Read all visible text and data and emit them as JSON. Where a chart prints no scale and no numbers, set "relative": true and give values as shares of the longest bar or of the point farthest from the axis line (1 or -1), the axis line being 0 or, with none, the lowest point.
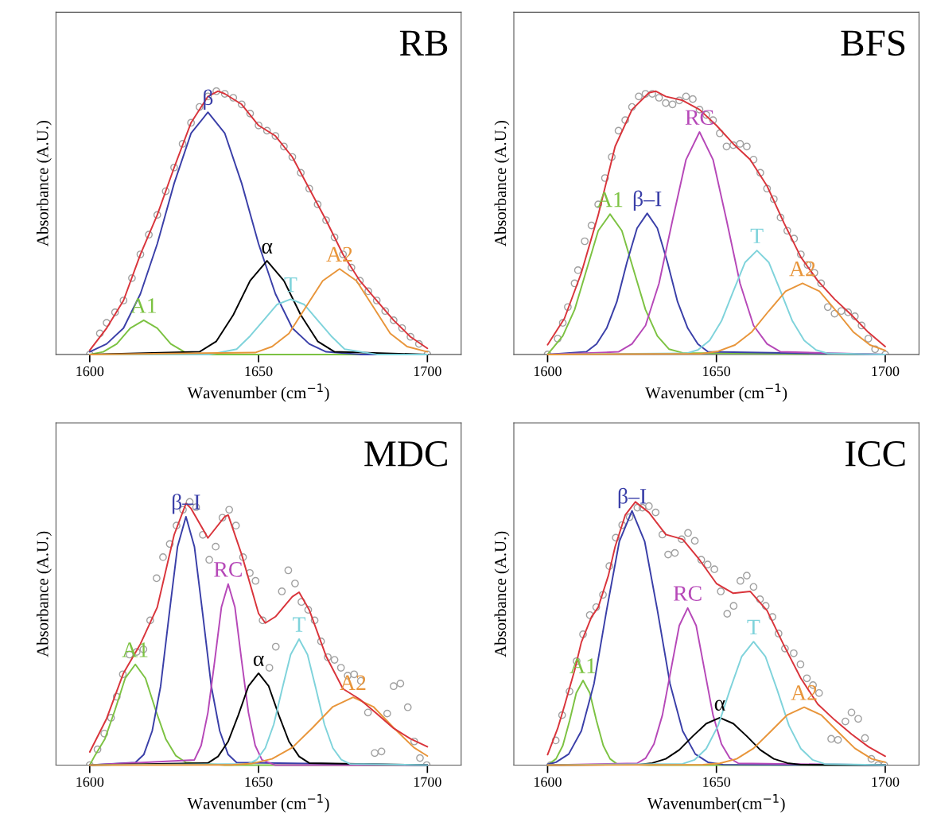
{
  "chart_data": [
    {
      "type": "line",
      "title": "RB",
      "xlabel": "Wavenumber (cm$^{−1}$)",
      "ylabel": "Absorbance (A.U.)",
      "relative": true,
      "tick_labels": "x",
      "xlim": [
        1590,
        1710
      ],
      "xticks": [
        1600,
        1650,
        1700
      ],
      "series": [
        {
          "type": "scatter",
          "marker": "circle",
          "color": "#a0a0a0",
          "x": [
            1600,
            1603,
            1605,
            1607.5,
            1610,
            1612.5,
            1615,
            1617.5,
            1620,
            1622.5,
            1625,
            1627.5,
            1630,
            1632.5,
            1635,
            1637.5,
            1640,
            1642.5,
            1645,
            1647.5,
            1650,
            1652.5,
            1655,
            1657.5,
            1660,
            1662.5,
            1665,
            1667.5,
            1670,
            1672.5,
            1675,
            1677.5,
            1680,
            1682.5,
            1685,
            1687.5,
            1690,
            1692.5,
            1695,
            1697.5,
            1700
          ],
          "values": [
            0,
            0.08,
            0.12,
            0.16,
            0.205,
            0.29,
            0.38,
            0.455,
            0.53,
            0.62,
            0.71,
            0.8,
            0.88,
            0.94,
            0.98,
            1.0,
            0.99,
            0.975,
            0.95,
            0.915,
            0.87,
            0.85,
            0.83,
            0.79,
            0.75,
            0.69,
            0.63,
            0.57,
            0.51,
            0.445,
            0.38,
            0.33,
            0.28,
            0.24,
            0.205,
            0.165,
            0.13,
            0.1,
            0.067,
            0.04,
            0
          ]
        },
        {
          "type": "line",
          "name": "A1",
          "color": "#7cc242",
          "x": [
            1600,
            1604,
            1608,
            1612,
            1616,
            1620,
            1624,
            1628,
            1632,
            1700
          ],
          "values": [
            0,
            0.01,
            0.04,
            0.1,
            0.13,
            0.1,
            0.04,
            0.01,
            0,
            0
          ]
        },
        {
          "type": "line",
          "name": "β",
          "color": "#3a3fa8",
          "x": [
            1600,
            1605,
            1610,
            1615,
            1620,
            1625,
            1630,
            1635,
            1640,
            1645,
            1650,
            1655,
            1660,
            1665,
            1670,
            1680,
            1700
          ],
          "values": [
            0.01,
            0.04,
            0.1,
            0.23,
            0.42,
            0.65,
            0.84,
            0.92,
            0.84,
            0.65,
            0.42,
            0.23,
            0.1,
            0.04,
            0.01,
            0,
            0
          ]
        },
        {
          "type": "line",
          "name": "α",
          "color": "#000000",
          "x": [
            1600,
            1632.5,
            1637.5,
            1642.5,
            1647.5,
            1652.5,
            1657.5,
            1662.5,
            1667.5,
            1672.5,
            1700
          ],
          "values": [
            0,
            0.01,
            0.05,
            0.15,
            0.28,
            0.356,
            0.28,
            0.15,
            0.05,
            0.01,
            0
          ]
        },
        {
          "type": "line",
          "name": "T",
          "color": "#7fd3db",
          "x": [
            1600,
            1635.5,
            1643.5,
            1647.5,
            1651.5,
            1655.5,
            1659.5,
            1663.5,
            1667.5,
            1671.5,
            1675.5,
            1685,
            1700
          ],
          "values": [
            0,
            0,
            0.02,
            0.07,
            0.13,
            0.19,
            0.21,
            0.19,
            0.13,
            0.07,
            0.02,
            0,
            0
          ]
        },
        {
          "type": "line",
          "name": "A2",
          "color": "#e8953a",
          "x": [
            1600,
            1649,
            1654,
            1659,
            1664,
            1669,
            1674,
            1679,
            1684,
            1689,
            1694,
            1700
          ],
          "values": [
            0,
            0.007,
            0.03,
            0.08,
            0.18,
            0.28,
            0.325,
            0.28,
            0.18,
            0.08,
            0.03,
            0.01
          ]
        },
        {
          "type": "line",
          "color": "#d9343b",
          "x": [
            1600,
            1605,
            1610,
            1615,
            1620,
            1625,
            1630,
            1635,
            1638,
            1640,
            1645,
            1650,
            1655,
            1660,
            1665,
            1670,
            1675,
            1680,
            1685,
            1690,
            1695,
            1700
          ],
          "values": [
            0.016,
            0.1,
            0.205,
            0.38,
            0.53,
            0.71,
            0.88,
            0.98,
            1.0,
            0.99,
            0.95,
            0.87,
            0.83,
            0.75,
            0.63,
            0.51,
            0.38,
            0.28,
            0.205,
            0.13,
            0.067,
            0.023
          ]
        }
      ]
    },
    {
      "type": "line",
      "title": "BFS",
      "xlabel": "Wavenumber (cm$^{−1}$)",
      "ylabel": "Absorbance (A.U.)",
      "relative": true,
      "tick_labels": "x",
      "xlim": [
        1590,
        1710
      ],
      "xticks": [
        1600,
        1650,
        1700
      ],
      "series": [
        {
          "type": "scatter",
          "marker": "circle",
          "color": "#a0a0a0",
          "x": [
            1600,
            1603,
            1604.5,
            1606,
            1608,
            1609,
            1611,
            1613,
            1615,
            1617,
            1619,
            1621,
            1623,
            1625,
            1627,
            1629,
            1631,
            1633,
            1635,
            1637,
            1639,
            1641,
            1643,
            1645,
            1647,
            1649,
            1651,
            1653,
            1655,
            1657,
            1659,
            1661,
            1663,
            1665,
            1667,
            1669,
            1671,
            1673,
            1675,
            1677,
            1679,
            1681,
            1683,
            1685,
            1687,
            1689,
            1691,
            1693,
            1695,
            1697,
            1700
          ],
          "values": [
            0,
            0.06,
            0.12,
            0.18,
            0.27,
            0.32,
            0.43,
            0.49,
            0.57,
            0.67,
            0.75,
            0.85,
            0.89,
            0.94,
            0.98,
            0.99,
            0.99,
            0.975,
            0.955,
            0.95,
            0.965,
            0.98,
            0.97,
            0.93,
            0.91,
            0.89,
            0.84,
            0.79,
            0.795,
            0.8,
            0.79,
            0.74,
            0.69,
            0.63,
            0.59,
            0.52,
            0.47,
            0.44,
            0.38,
            0.34,
            0.31,
            0.27,
            0.18,
            0.155,
            0.165,
            0.16,
            0.145,
            0.11,
            0.06,
            0.02,
            0
          ]
        },
        {
          "type": "line",
          "name": "A1",
          "color": "#7cc242",
          "x": [
            1600,
            1604.5,
            1608,
            1611.5,
            1615,
            1618.5,
            1622,
            1625.5,
            1629,
            1632.5,
            1636,
            1640,
            1700
          ],
          "values": [
            0,
            0.07,
            0.17,
            0.32,
            0.47,
            0.533,
            0.47,
            0.32,
            0.17,
            0.07,
            0.02,
            0.006,
            0
          ]
        },
        {
          "type": "line",
          "name": "β–I",
          "color": "#3a3fa8",
          "x": [
            1600,
            1611.5,
            1614.5,
            1617.5,
            1620.5,
            1623.5,
            1626.5,
            1629.5,
            1632.5,
            1635.5,
            1638.5,
            1641.5,
            1644.5,
            1647.5,
            1700
          ],
          "values": [
            0,
            0.01,
            0.04,
            0.1,
            0.2,
            0.35,
            0.48,
            0.536,
            0.48,
            0.35,
            0.2,
            0.1,
            0.04,
            0.01,
            0
          ]
        },
        {
          "type": "line",
          "name": "RC",
          "color": "#b648b8",
          "x": [
            1600,
            1621,
            1625,
            1629,
            1633,
            1637,
            1641,
            1645,
            1649,
            1653,
            1657,
            1661,
            1665,
            1669,
            1700
          ],
          "values": [
            0,
            0.01,
            0.04,
            0.11,
            0.27,
            0.51,
            0.74,
            0.845,
            0.74,
            0.51,
            0.27,
            0.11,
            0.04,
            0.01,
            0
          ]
        },
        {
          "type": "line",
          "name": "T",
          "color": "#7fd3db",
          "x": [
            1600,
            1641,
            1644.5,
            1648,
            1651.5,
            1655,
            1658.5,
            1662,
            1665.5,
            1669,
            1672.5,
            1676,
            1679.5,
            1683,
            1700
          ],
          "values": [
            0,
            0.004,
            0.017,
            0.053,
            0.127,
            0.24,
            0.35,
            0.395,
            0.35,
            0.24,
            0.127,
            0.053,
            0.017,
            0.004,
            0
          ]
        },
        {
          "type": "line",
          "name": "A2",
          "color": "#e8953a",
          "x": [
            1600,
            1645.5,
            1650.5,
            1655.5,
            1660.5,
            1665.5,
            1670.5,
            1675.5,
            1680.5,
            1685.5,
            1690.5,
            1695.5,
            1700
          ],
          "values": [
            0,
            0.003,
            0.012,
            0.036,
            0.086,
            0.165,
            0.24,
            0.27,
            0.24,
            0.165,
            0.086,
            0.036,
            0.015
          ]
        },
        {
          "type": "line",
          "color": "#d9343b",
          "x": [
            1600,
            1605,
            1610,
            1615,
            1620,
            1625,
            1630,
            1632,
            1635,
            1640,
            1645,
            1650,
            1655,
            1660,
            1665,
            1670,
            1675,
            1680,
            1685,
            1690,
            1695,
            1700
          ],
          "values": [
            0.037,
            0.137,
            0.31,
            0.53,
            0.79,
            0.93,
            0.994,
            1.0,
            0.98,
            0.965,
            0.93,
            0.87,
            0.8,
            0.74,
            0.64,
            0.5,
            0.37,
            0.28,
            0.21,
            0.15,
            0.084,
            0.03
          ]
        }
      ]
    },
    {
      "type": "line",
      "title": "MDC",
      "xlabel": "Wavenumber (cm$^{−1}$)",
      "ylabel": "Absorbance (A.U.)",
      "relative": true,
      "tick_labels": "x",
      "xlim": [
        1590,
        1710
      ],
      "xticks": [
        1600,
        1650,
        1700
      ],
      "series": [
        {
          "type": "scatter",
          "marker": "circle",
          "color": "#a0a0a0",
          "x": [
            1600,
            1602.3,
            1604.3,
            1606.3,
            1608,
            1609.8,
            1611.8,
            1613.9,
            1615.9,
            1617.9,
            1619.8,
            1621.7,
            1623.7,
            1625.7,
            1627.6,
            1629.6,
            1631.5,
            1633.5,
            1635.4,
            1637.3,
            1639.3,
            1641.3,
            1643.3,
            1645.4,
            1647.4,
            1649.1,
            1651.2,
            1653.2,
            1655.1,
            1656.9,
            1658.8,
            1660.8,
            1662.7,
            1664.7,
            1666.6,
            1668.5,
            1670.5,
            1672.5,
            1674.4,
            1676.4,
            1678.3,
            1680.3,
            1682.4,
            1684.4,
            1686.4,
            1688.1,
            1690,
            1692,
            1694.2,
            1696.1,
            1697.8,
            1699.8
          ],
          "values": [
            0,
            0.06,
            0.12,
            0.18,
            0.26,
            0.345,
            0.42,
            0.43,
            0.44,
            0.55,
            0.71,
            0.79,
            0.84,
            0.91,
            0.97,
            1.0,
            0.98,
            0.875,
            0.78,
            0.83,
            0.94,
            0.97,
            0.91,
            0.79,
            0.73,
            0.7,
            0.55,
            0.37,
            0.45,
            0.66,
            0.74,
            0.69,
            0.62,
            0.59,
            0.55,
            0.47,
            0.41,
            0.4,
            0.37,
            0.34,
            0.345,
            0.32,
            0.2,
            0.046,
            0.052,
            0.196,
            0.3,
            0.31,
            0.22,
            0.09,
            0.027,
            0
          ]
        },
        {
          "type": "line",
          "name": "A1",
          "color": "#7cc242",
          "x": [
            1600,
            1601.5,
            1604.5,
            1607.5,
            1610.5,
            1613.5,
            1616.5,
            1619.5,
            1622.5,
            1625.5,
            1628.5,
            1640,
            1700
          ],
          "values": [
            0,
            0.036,
            0.1,
            0.21,
            0.33,
            0.383,
            0.33,
            0.21,
            0.1,
            0.036,
            0.01,
            0,
            0
          ]
        },
        {
          "type": "line",
          "name": "β–I",
          "color": "#3a3fa8",
          "x": [
            1600,
            1613.5,
            1616,
            1618.5,
            1621,
            1623.5,
            1626,
            1628.5,
            1631,
            1633.5,
            1636,
            1638.5,
            1641,
            1643.5,
            1700
          ],
          "values": [
            0,
            0.01,
            0.04,
            0.13,
            0.3,
            0.57,
            0.83,
            0.944,
            0.83,
            0.57,
            0.3,
            0.13,
            0.04,
            0.01,
            0
          ]
        },
        {
          "type": "line",
          "name": "RC",
          "color": "#b648b8",
          "x": [
            1600,
            1631,
            1633,
            1635,
            1637,
            1639,
            1641,
            1643,
            1645,
            1647,
            1649,
            1651,
            1655,
            1700
          ],
          "values": [
            0,
            0.02,
            0.075,
            0.2,
            0.395,
            0.6,
            0.688,
            0.6,
            0.395,
            0.2,
            0.075,
            0.02,
            0,
            0
          ]
        },
        {
          "type": "line",
          "name": "α",
          "color": "#000000",
          "x": [
            1600,
            1635,
            1638,
            1641,
            1644,
            1647,
            1650,
            1653,
            1656,
            1659,
            1662,
            1665,
            1700
          ],
          "values": [
            0,
            0.008,
            0.033,
            0.09,
            0.19,
            0.3,
            0.349,
            0.3,
            0.19,
            0.09,
            0.033,
            0.008,
            0
          ]
        },
        {
          "type": "line",
          "name": "T",
          "color": "#7fd3db",
          "x": [
            1600,
            1647,
            1649.5,
            1652,
            1654.5,
            1657,
            1659.5,
            1662,
            1664.5,
            1667,
            1669.5,
            1672,
            1674.5,
            1677,
            1700
          ],
          "values": [
            0,
            0.005,
            0.021,
            0.065,
            0.155,
            0.29,
            0.42,
            0.479,
            0.42,
            0.29,
            0.155,
            0.065,
            0.021,
            0.005,
            0
          ]
        },
        {
          "type": "line",
          "name": "A2",
          "color": "#e8953a",
          "x": [
            1600,
            1642,
            1648,
            1654,
            1660,
            1666,
            1672,
            1678,
            1684,
            1690,
            1696,
            1700
          ],
          "values": [
            0,
            0.001,
            0.006,
            0.024,
            0.067,
            0.142,
            0.222,
            0.258,
            0.222,
            0.142,
            0.067,
            0.035
          ]
        },
        {
          "type": "line",
          "color": "#d9343b",
          "x": [
            1600,
            1605,
            1610,
            1615,
            1620,
            1625,
            1628.5,
            1630,
            1635,
            1640,
            1641,
            1645,
            1650,
            1652,
            1655,
            1660,
            1662,
            1665,
            1670,
            1675,
            1680,
            1685,
            1690,
            1695,
            1700
          ],
          "values": [
            0.05,
            0.177,
            0.35,
            0.46,
            0.6,
            0.875,
            0.994,
            0.975,
            0.863,
            0.944,
            0.95,
            0.8,
            0.576,
            0.54,
            0.564,
            0.64,
            0.657,
            0.59,
            0.414,
            0.29,
            0.25,
            0.196,
            0.14,
            0.1,
            0.07
          ]
        }
      ]
    },
    {
      "type": "line",
      "title": "ICC",
      "xlabel": "Wavenumber(cm$^{−1}$)",
      "ylabel": "Absorbance (A.U.)",
      "relative": true,
      "tick_labels": "x",
      "xlim": [
        1590,
        1710
      ],
      "xticks": [
        1600,
        1650,
        1700
      ],
      "series": [
        {
          "type": "scatter",
          "marker": "circle",
          "color": "#a0a0a0",
          "x": [
            1600.9,
            1602.4,
            1604.3,
            1606.5,
            1608.6,
            1610.5,
            1612.5,
            1614.4,
            1616.4,
            1618.3,
            1620.2,
            1622.1,
            1624.3,
            1626.6,
            1628.1,
            1630,
            1632,
            1634,
            1635.7,
            1637.7,
            1639.7,
            1641.6,
            1643.6,
            1645.5,
            1647.4,
            1649.4,
            1651.3,
            1653.2,
            1655.1,
            1657.1,
            1659,
            1661,
            1662.9,
            1664.6,
            1666.6,
            1668.4,
            1670.3,
            1672.9,
            1674.9,
            1676.8,
            1678.6,
            1680.4,
            1684,
            1686,
            1688.2,
            1690,
            1692,
            1694,
            1695.9,
            1697.9,
            1699.7
          ],
          "values": [
            0,
            0.094,
            0.19,
            0.28,
            0.395,
            0.497,
            0.57,
            0.6,
            0.647,
            0.756,
            0.864,
            0.912,
            0.942,
            0.978,
            0.978,
            0.984,
            0.96,
            0.876,
            0.8,
            0.806,
            0.858,
            0.882,
            0.852,
            0.78,
            0.762,
            0.744,
            0.66,
            0.575,
            0.605,
            0.7,
            0.72,
            0.677,
            0.63,
            0.605,
            0.563,
            0.5,
            0.443,
            0.425,
            0.383,
            0.33,
            0.304,
            0.274,
            0.1,
            0.096,
            0.166,
            0.2,
            0.176,
            0.103,
            0.024,
            0,
            0
          ]
        },
        {
          "type": "line",
          "name": "A1",
          "color": "#7cc242",
          "x": [
            1600,
            1600.5,
            1602.5,
            1604.5,
            1606.5,
            1608.5,
            1610.5,
            1612.5,
            1614.5,
            1616.5,
            1618.5,
            1620.5,
            1630,
            1700
          ],
          "values": [
            0,
            0.005,
            0.024,
            0.074,
            0.168,
            0.274,
            0.322,
            0.274,
            0.168,
            0.074,
            0.024,
            0.005,
            0,
            0
          ]
        },
        {
          "type": "line",
          "name": "β–I",
          "color": "#3a3fa8",
          "x": [
            1600,
            1602.5,
            1606.25,
            1610,
            1613.75,
            1617.5,
            1621.25,
            1625,
            1628.75,
            1632.5,
            1636.25,
            1640,
            1643.75,
            1647.5,
            1652,
            1700
          ],
          "values": [
            0.003,
            0.011,
            0.042,
            0.13,
            0.31,
            0.59,
            0.85,
            0.966,
            0.85,
            0.59,
            0.31,
            0.13,
            0.042,
            0.011,
            0.002,
            0
          ]
        },
        {
          "type": "line",
          "name": "RC",
          "color": "#b648b8",
          "x": [
            1600,
            1626.5,
            1629,
            1631.5,
            1634,
            1636.5,
            1639,
            1641.5,
            1644,
            1646.5,
            1649,
            1651.5,
            1654,
            1656.5,
            1700
          ],
          "values": [
            0,
            0.007,
            0.026,
            0.08,
            0.19,
            0.36,
            0.53,
            0.597,
            0.53,
            0.36,
            0.19,
            0.08,
            0.026,
            0.007,
            0
          ]
        },
        {
          "type": "line",
          "name": "α",
          "color": "#000000",
          "x": [
            1600,
            1627,
            1631,
            1635,
            1639,
            1643,
            1647,
            1651,
            1655,
            1659,
            1663,
            1667,
            1671,
            1675,
            1700
          ],
          "values": [
            0,
            0.002,
            0.008,
            0.024,
            0.058,
            0.11,
            0.158,
            0.18,
            0.158,
            0.11,
            0.058,
            0.024,
            0.008,
            0.002,
            0
          ]
        },
        {
          "type": "line",
          "name": "T",
          "color": "#7fd3db",
          "x": [
            1600,
            1640,
            1643.5,
            1647,
            1650.5,
            1654,
            1657.5,
            1661,
            1664.5,
            1668,
            1671.5,
            1675,
            1678.5,
            1682,
            1700
          ],
          "values": [
            0,
            0.005,
            0.02,
            0.063,
            0.15,
            0.286,
            0.413,
            0.469,
            0.413,
            0.286,
            0.15,
            0.063,
            0.02,
            0.005,
            0
          ]
        },
        {
          "type": "line",
          "name": "A2",
          "color": "#e8953a",
          "x": [
            1600,
            1646,
            1651,
            1656,
            1661,
            1666,
            1671,
            1676,
            1681,
            1686,
            1691,
            1696,
            1700
          ],
          "values": [
            0,
            0.0015,
            0.007,
            0.024,
            0.064,
            0.127,
            0.191,
            0.22,
            0.191,
            0.127,
            0.064,
            0.024,
            0.011
          ]
        },
        {
          "type": "line",
          "color": "#d9343b",
          "x": [
            1600,
            1603,
            1605,
            1608,
            1610,
            1613,
            1615,
            1618,
            1620,
            1623,
            1626,
            1630,
            1635,
            1640,
            1645,
            1650,
            1655,
            1660,
            1665,
            1670,
            1675,
            1680,
            1685,
            1690,
            1695,
            1700
          ],
          "values": [
            0.04,
            0.14,
            0.226,
            0.36,
            0.467,
            0.563,
            0.6,
            0.72,
            0.83,
            0.95,
            1.0,
            0.96,
            0.876,
            0.858,
            0.78,
            0.69,
            0.653,
            0.66,
            0.587,
            0.455,
            0.33,
            0.232,
            0.172,
            0.118,
            0.07,
            0.034
          ]
        }
      ]
    }
  ]
}
